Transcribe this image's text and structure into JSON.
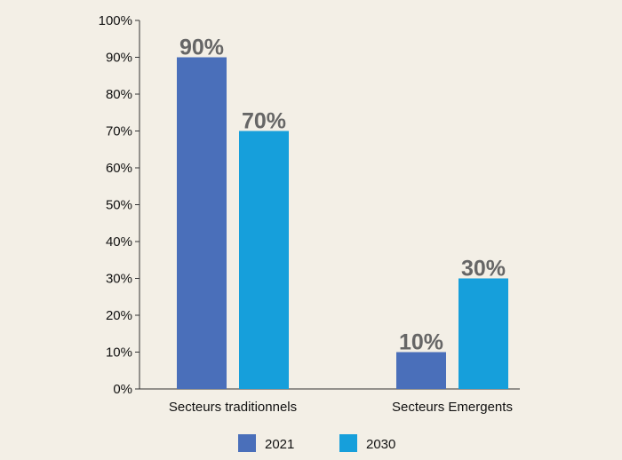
{
  "chart_data": {
    "type": "bar",
    "categories": [
      "Secteurs traditionnels",
      "Secteurs Emergents"
    ],
    "series": [
      {
        "name": "2021",
        "values": [
          90,
          10
        ],
        "labels": [
          "90%",
          "10%"
        ],
        "color": "#4a6fba"
      },
      {
        "name": "2030",
        "values": [
          70,
          30
        ],
        "labels": [
          "70%",
          "30%"
        ],
        "color": "#169fdb"
      }
    ],
    "ylim": [
      0,
      100
    ],
    "yticks": [
      "0%",
      "10%",
      "20%",
      "30%",
      "40%",
      "50%",
      "60%",
      "70%",
      "80%",
      "90%",
      "100%"
    ],
    "legend_position": "bottom",
    "grid": false
  }
}
